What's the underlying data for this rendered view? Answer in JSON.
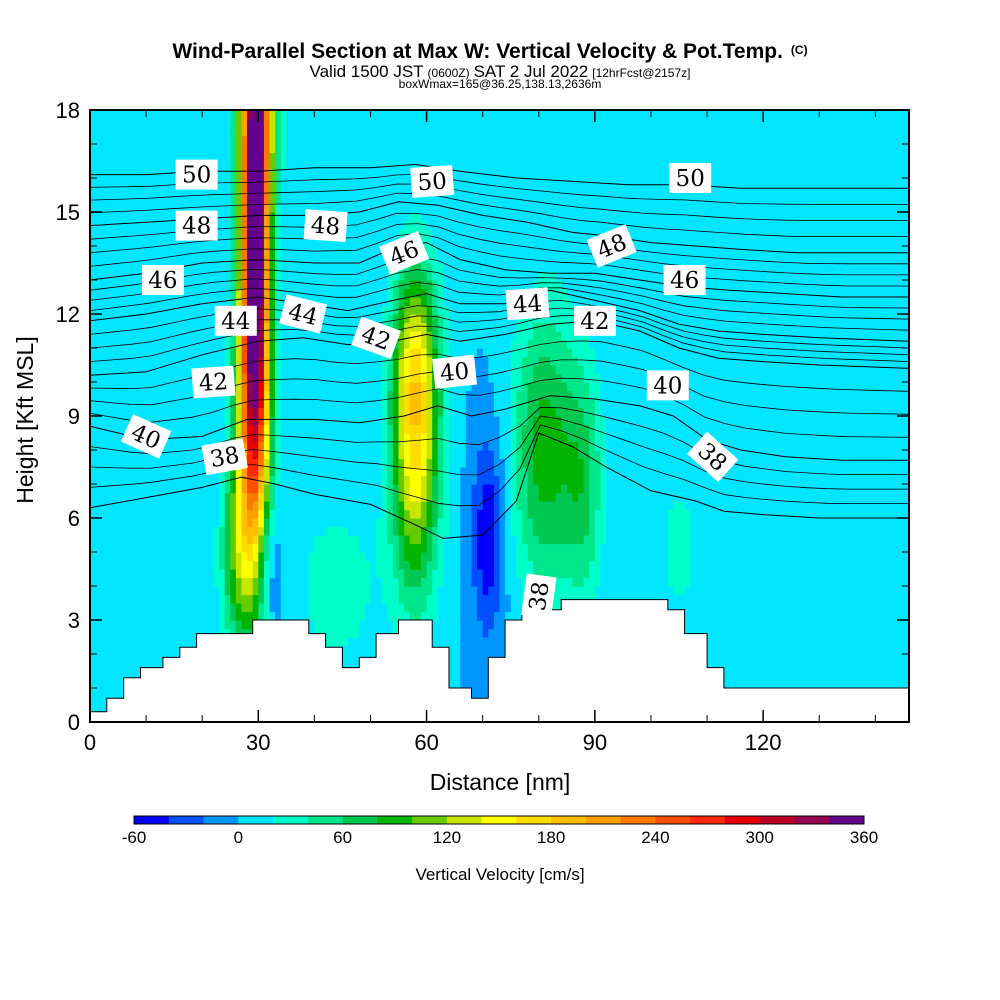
{
  "header": {
    "title_main": "Wind-Parallel Section at Max W: Vertical Velocity & Pot.Temp.",
    "title_copyright": "(C)",
    "subtitle_prefix": "Valid 1500 JST",
    "subtitle_utc": "(0600Z)",
    "subtitle_date": "SAT 2 Jul 2022",
    "subtitle_fcst": "[12hrFcst@2157z]",
    "boxline": "boxWmax=165@36.25,138.13,2636m"
  },
  "chart_data": {
    "type": "heatmap",
    "xlabel": "Distance [nm]",
    "ylabel": "Height [Kft MSL]",
    "xlim": [
      0,
      146
    ],
    "ylim": [
      0,
      18
    ],
    "x_ticks": [
      "0",
      "30",
      "60",
      "90",
      "120"
    ],
    "y_ticks": [
      "0",
      "3",
      "6",
      "9",
      "12",
      "15",
      "18"
    ],
    "grid": false,
    "colorbar": {
      "label": "Vertical Velocity [cm/s]",
      "tick_labels": [
        "-60",
        "0",
        "60",
        "120",
        "180",
        "240",
        "300",
        "360"
      ],
      "bins": [
        -60,
        -40,
        -20,
        0,
        20,
        40,
        60,
        80,
        100,
        120,
        140,
        160,
        180,
        200,
        220,
        240,
        260,
        280,
        300,
        320,
        340,
        360
      ],
      "colors": [
        "#0000ff",
        "#0050ff",
        "#0096ff",
        "#00e6ff",
        "#00ffc8",
        "#00e68c",
        "#00c850",
        "#00b400",
        "#64cc00",
        "#c8e600",
        "#ffff00",
        "#ffdc00",
        "#ffbe00",
        "#ffa000",
        "#ff7800",
        "#ff5000",
        "#ff2800",
        "#e60000",
        "#be0028",
        "#960050",
        "#64008c"
      ]
    },
    "vertical_velocity_regions": [
      {
        "feature": "background",
        "x": 73,
        "y": 9,
        "sx": 200,
        "sy": 100,
        "w": 0
      },
      {
        "feature": "updraft-core",
        "x": 29.5,
        "y": 15,
        "sx": 1.6,
        "sy": 4.5,
        "w": 330
      },
      {
        "feature": "updraft-stem",
        "x": 29,
        "y": 9,
        "sx": 2.2,
        "sy": 4,
        "w": 200
      },
      {
        "feature": "updraft-top",
        "x": 30,
        "y": 18,
        "sx": 2.5,
        "sy": 2,
        "w": 120
      },
      {
        "feature": "updraft-low",
        "x": 26,
        "y": 5,
        "sx": 2,
        "sy": 2,
        "w": 70
      },
      {
        "feature": "updraft",
        "x": 58,
        "y": 8,
        "sx": 3,
        "sy": 3,
        "w": 150
      },
      {
        "feature": "updraft-upper",
        "x": 58,
        "y": 11,
        "sx": 3,
        "sy": 2,
        "w": 70
      },
      {
        "feature": "updraft",
        "x": 81,
        "y": 8,
        "sx": 4,
        "sy": 3,
        "w": 90
      },
      {
        "feature": "updraft",
        "x": 88,
        "y": 7,
        "sx": 2.5,
        "sy": 2.5,
        "w": 60
      },
      {
        "feature": "downdraft",
        "x": 71,
        "y": 5.5,
        "sx": 2,
        "sy": 2,
        "w": -60
      },
      {
        "feature": "downdraft",
        "x": 32,
        "y": 4.5,
        "sx": 1.6,
        "sy": 1.5,
        "w": -40
      },
      {
        "feature": "weak-updraft",
        "x": 44,
        "y": 4,
        "sx": 6,
        "sy": 2,
        "w": 30
      },
      {
        "feature": "weak-updraft",
        "x": 120,
        "y": 16,
        "sx": 14,
        "sy": 4,
        "w": 18
      },
      {
        "feature": "weak-updraft",
        "x": 105,
        "y": 5,
        "sx": 5,
        "sy": 3,
        "w": 22
      },
      {
        "feature": "weak-updraft",
        "x": 10,
        "y": 4,
        "sx": 9,
        "sy": 2,
        "w": 15
      }
    ],
    "terrain": {
      "x": [
        0,
        0,
        3,
        3,
        6,
        6,
        9,
        9,
        13,
        13,
        16,
        16,
        19,
        19,
        21,
        21,
        24,
        24,
        29,
        29,
        39,
        39,
        42,
        42,
        45,
        45,
        48,
        48,
        51,
        51,
        55,
        55,
        61,
        61,
        64,
        64,
        68,
        68,
        71,
        71,
        74,
        74,
        77,
        77,
        84,
        84,
        87,
        87,
        103,
        103,
        106,
        106,
        110,
        110,
        113,
        113,
        146,
        146
      ],
      "y": [
        0,
        0.3,
        0.3,
        0.7,
        0.7,
        1.3,
        1.3,
        1.6,
        1.6,
        1.9,
        1.9,
        2.2,
        2.2,
        2.6,
        2.6,
        2.6,
        2.6,
        2.6,
        2.6,
        3.0,
        3.0,
        2.6,
        2.6,
        2.2,
        2.2,
        1.6,
        1.6,
        1.9,
        1.9,
        2.6,
        2.6,
        3.0,
        3.0,
        2.2,
        2.2,
        1.0,
        1.0,
        0.7,
        0.7,
        1.9,
        1.9,
        3.0,
        3.0,
        3.3,
        3.3,
        3.6,
        3.6,
        3.6,
        3.6,
        3.3,
        3.3,
        2.6,
        2.6,
        1.6,
        1.6,
        1.0,
        1.0,
        0
      ]
    },
    "potential_temperature_contours": [
      {
        "level": 38,
        "x": [
          0,
          10,
          20,
          27,
          33,
          40,
          50,
          58,
          63,
          70,
          76,
          80,
          86,
          92,
          100,
          108,
          113,
          120,
          130,
          146
        ],
        "y": [
          6.3,
          6.6,
          6.9,
          7.2,
          7.0,
          6.7,
          6.4,
          5.8,
          5.4,
          5.5,
          6.5,
          8.5,
          8.1,
          7.5,
          6.8,
          6.5,
          6.2,
          6.1,
          6.0,
          6.0
        ]
      },
      {
        "level": 40,
        "x": [
          0,
          10,
          20,
          28,
          33,
          40,
          48,
          56,
          62,
          68,
          74,
          82,
          90,
          98,
          104,
          110,
          116,
          124,
          134,
          146
        ],
        "y": [
          8.7,
          8.3,
          8.4,
          8.9,
          8.9,
          8.9,
          8.8,
          9.0,
          9.3,
          9.0,
          9.2,
          9.6,
          9.5,
          9.3,
          9.0,
          8.3,
          8.0,
          7.8,
          7.7,
          7.7
        ]
      },
      {
        "level": 42,
        "x": [
          0,
          10,
          20,
          30,
          38,
          46,
          54,
          60,
          66,
          74,
          82,
          90,
          98,
          105,
          112,
          120,
          130,
          146
        ],
        "y": [
          10.2,
          10.3,
          10.8,
          11.2,
          11.3,
          11.1,
          11.2,
          11.4,
          11.2,
          11.4,
          11.7,
          11.8,
          11.5,
          11.0,
          10.7,
          10.6,
          10.5,
          10.4
        ]
      },
      {
        "level": 44,
        "x": [
          0,
          10,
          20,
          30,
          38,
          46,
          54,
          60,
          66,
          74,
          82,
          90,
          98,
          105,
          112,
          120,
          130,
          146
        ],
        "y": [
          11.8,
          12.0,
          12.3,
          12.5,
          12.3,
          12.1,
          12.4,
          12.6,
          12.3,
          12.3,
          12.7,
          12.4,
          12.1,
          11.7,
          11.5,
          11.4,
          11.3,
          11.2
        ]
      },
      {
        "level": 46,
        "x": [
          0,
          10,
          20,
          30,
          40,
          48,
          55,
          60,
          66,
          74,
          82,
          90,
          98,
          106,
          114,
          124,
          134,
          146
        ],
        "y": [
          13.0,
          13.2,
          13.5,
          13.6,
          13.5,
          13.5,
          14.0,
          14.1,
          13.6,
          13.3,
          13.2,
          13.2,
          13.0,
          12.8,
          12.7,
          12.6,
          12.5,
          12.5
        ]
      },
      {
        "level": 48,
        "x": [
          0,
          10,
          20,
          30,
          40,
          48,
          55,
          62,
          70,
          78,
          86,
          92,
          100,
          108,
          116,
          126,
          136,
          146
        ],
        "y": [
          14.6,
          14.7,
          14.8,
          14.9,
          14.9,
          15.0,
          15.3,
          15.2,
          14.9,
          14.7,
          14.4,
          14.3,
          14.1,
          14.0,
          13.9,
          13.8,
          13.8,
          13.8
        ]
      },
      {
        "level": 50,
        "x": [
          0,
          10,
          20,
          30,
          40,
          50,
          58,
          66,
          76,
          86,
          96,
          106,
          116,
          126,
          136,
          146
        ],
        "y": [
          16.1,
          16.1,
          16.2,
          16.2,
          16.3,
          16.3,
          16.4,
          16.2,
          16.0,
          15.9,
          15.8,
          15.8,
          15.7,
          15.7,
          15.7,
          15.7
        ]
      }
    ],
    "contour_labels": [
      {
        "text": "50",
        "x": 19,
        "y": 16.1,
        "angle": 0
      },
      {
        "text": "50",
        "x": 61,
        "y": 15.9,
        "angle": -4
      },
      {
        "text": "50",
        "x": 107,
        "y": 16.0,
        "angle": 0
      },
      {
        "text": "48",
        "x": 19,
        "y": 14.6,
        "angle": 0
      },
      {
        "text": "48",
        "x": 42,
        "y": 14.6,
        "angle": 4
      },
      {
        "text": "48",
        "x": 93,
        "y": 14.0,
        "angle": -22
      },
      {
        "text": "46",
        "x": 13,
        "y": 13.0,
        "angle": 0
      },
      {
        "text": "46",
        "x": 56,
        "y": 13.8,
        "angle": -22
      },
      {
        "text": "46",
        "x": 106,
        "y": 13.0,
        "angle": 0
      },
      {
        "text": "44",
        "x": 26,
        "y": 11.8,
        "angle": 0
      },
      {
        "text": "44",
        "x": 38,
        "y": 12.0,
        "angle": 14
      },
      {
        "text": "44",
        "x": 78,
        "y": 12.3,
        "angle": -4
      },
      {
        "text": "42",
        "x": 22,
        "y": 10.0,
        "angle": -4
      },
      {
        "text": "42",
        "x": 51,
        "y": 11.3,
        "angle": 20
      },
      {
        "text": "42",
        "x": 90,
        "y": 11.8,
        "angle": 0
      },
      {
        "text": "40",
        "x": 10,
        "y": 8.4,
        "angle": 24
      },
      {
        "text": "40",
        "x": 65,
        "y": 10.3,
        "angle": -6
      },
      {
        "text": "40",
        "x": 103,
        "y": 9.9,
        "angle": 0
      },
      {
        "text": "38",
        "x": 24,
        "y": 7.8,
        "angle": -10
      },
      {
        "text": "38",
        "x": 111,
        "y": 7.8,
        "angle": 42
      },
      {
        "text": "38",
        "x": 80,
        "y": 3.7,
        "angle": -82
      }
    ]
  }
}
